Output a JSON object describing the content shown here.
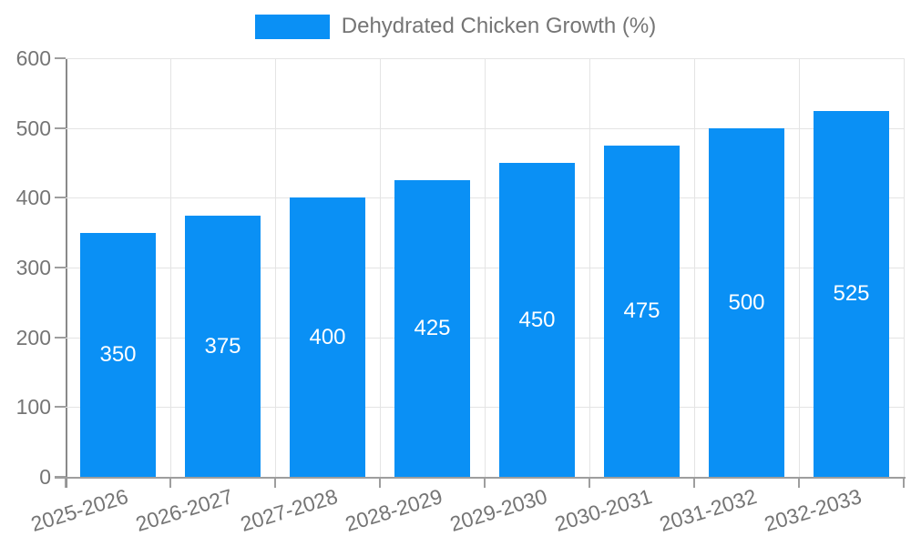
{
  "legend": {
    "label": "Dehydrated Chicken Growth (%)"
  },
  "chart_data": {
    "type": "bar",
    "title": "",
    "xlabel": "",
    "ylabel": "",
    "categories": [
      "2025-2026",
      "2026-2027",
      "2027-2028",
      "2028-2029",
      "2029-2030",
      "2030-2031",
      "2031-2032",
      "2032-2033"
    ],
    "values": [
      350,
      375,
      400,
      425,
      450,
      475,
      500,
      525
    ],
    "series_name": "Dehydrated Chicken Growth (%)",
    "ylim": [
      0,
      600
    ],
    "yticks": [
      0,
      100,
      200,
      300,
      400,
      500,
      600
    ],
    "grid": true,
    "legend_position": "top-center",
    "value_labels": "inside-center",
    "x_label_rotation_deg": -17,
    "colors": {
      "bar": "#0a90f5",
      "value_label": "#ffffff",
      "axis_text": "#757575",
      "axis_line": "#9e9e9e",
      "gridline": "#e4e4e4"
    }
  }
}
